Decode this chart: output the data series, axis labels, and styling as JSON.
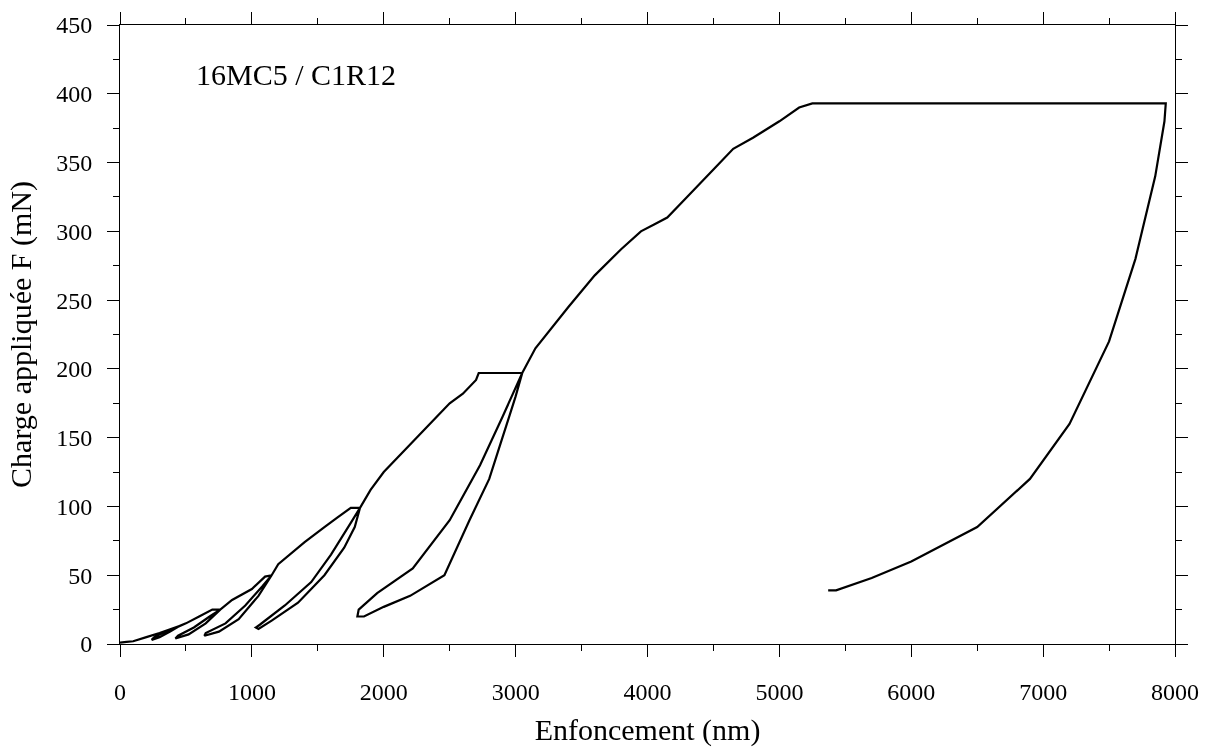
{
  "chart_data": {
    "type": "line",
    "xlabel": "Enfoncement (nm)",
    "ylabel": "Charge appliquée F (mN)",
    "annotations": [
      "16MC5 / C1R12"
    ],
    "series": [
      {
        "color": "#000000",
        "x": [
          0,
          50,
          100,
          200,
          300,
          450,
          380,
          300,
          240,
          260,
          350,
          450,
          500,
          600,
          700,
          760,
          650,
          520,
          420,
          440,
          560,
          680,
          760,
          850,
          1000,
          1100,
          1150,
          1050,
          900,
          750,
          640,
          650,
          800,
          950,
          1080,
          1150,
          1200,
          1400,
          1550,
          1650,
          1750,
          1820,
          1780,
          1700,
          1550,
          1350,
          1150,
          1050,
          1030,
          1060,
          1250,
          1450,
          1600,
          1750,
          1820,
          1900,
          2000,
          2200,
          2400,
          2500,
          2600,
          2700,
          2720,
          3050,
          3000,
          2900,
          2800,
          2650,
          2460,
          2200,
          2000,
          1850,
          1800,
          1810,
          1950,
          2220,
          2500,
          2730,
          2900,
          3050,
          3150,
          3400,
          3600,
          3800,
          3950,
          4050,
          4150,
          4300,
          4500,
          4650,
          4800,
          5000,
          5150,
          5250,
          7930,
          7920,
          7850,
          7700,
          7500,
          7200,
          6900,
          6500,
          6000,
          5700,
          5430,
          5370
        ],
        "values": [
          1,
          1.5,
          2,
          5,
          8,
          13,
          9,
          5,
          3,
          5,
          9,
          13,
          15,
          20,
          25,
          25,
          15,
          7,
          4,
          6,
          12,
          20,
          25,
          32,
          40,
          49,
          50,
          35,
          18,
          9,
          6,
          8,
          15,
          28,
          42,
          50,
          58,
          74,
          85,
          92,
          99,
          99,
          85,
          70,
          50,
          30,
          17,
          11,
          12,
          14,
          28,
          45,
          65,
          88,
          99,
          112,
          125,
          145,
          165,
          175,
          182,
          192,
          197,
          197,
          180,
          150,
          120,
          90,
          50,
          35,
          27,
          20,
          20,
          25,
          37,
          55,
          90,
          130,
          165,
          197,
          215,
          245,
          268,
          287,
          300,
          305,
          310,
          325,
          345,
          360,
          368,
          380,
          390,
          393,
          393,
          380,
          340,
          280,
          220,
          160,
          120,
          85,
          60,
          48,
          39,
          39
        ]
      }
    ],
    "xlim": [
      0,
      8000
    ],
    "ylim": [
      0,
      450
    ],
    "xticks": [
      0,
      {
        "value": 500,
        "label": null
      },
      1000,
      {
        "value": 1500,
        "label": null
      },
      2000,
      {
        "value": 2500,
        "label": null
      },
      3000,
      {
        "value": 3500,
        "label": null
      },
      4000,
      {
        "value": 4500,
        "label": null
      },
      5000,
      {
        "value": 5500,
        "label": null
      },
      6000,
      {
        "value": 6500,
        "label": null
      },
      7000,
      {
        "value": 7500,
        "label": null
      },
      8000
    ],
    "yticks": [
      0,
      {
        "value": 25,
        "label": null
      },
      50,
      {
        "value": 75,
        "label": null
      },
      100,
      {
        "value": 125,
        "label": null
      },
      150,
      {
        "value": 175,
        "label": null
      },
      200,
      {
        "value": 225,
        "label": null
      },
      250,
      {
        "value": 275,
        "label": null
      },
      300,
      {
        "value": 325,
        "label": null
      },
      350,
      {
        "value": 375,
        "label": null
      },
      400,
      {
        "value": 425,
        "label": null
      },
      450
    ],
    "marker": "none",
    "line_style": "solid"
  }
}
